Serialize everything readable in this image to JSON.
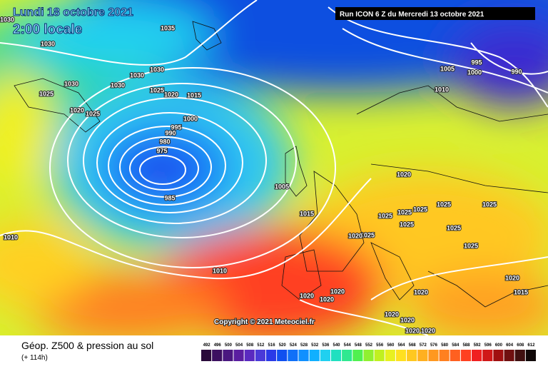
{
  "header": {
    "date": "Lundi 18 octobre 2021",
    "time": "2:00 locale",
    "run": "Run ICON 6 Z du Mercredi 13 octobre 2021"
  },
  "copyright": "Copyright © 2021 Meteociel.fr",
  "footer": {
    "title": "Géop. Z500 & pression au sol",
    "lead": "(+ 114h)"
  },
  "isobar_labels": [
    1030,
    1035,
    1030,
    1030,
    1030,
    1030,
    1030,
    1025,
    1020,
    1015,
    1025,
    1020,
    1025,
    1000,
    995,
    990,
    980,
    975,
    985,
    1005,
    1015,
    1010,
    1010,
    1020,
    1025,
    1025,
    1025,
    1025,
    1025,
    1025,
    1025,
    1025,
    1025,
    1020,
    1020,
    1020,
    1020,
    1020,
    1020,
    1020,
    1020,
    1020,
    1020,
    1015,
    1005,
    995,
    1000,
    990,
    1010
  ],
  "scale": {
    "labels": [
      492,
      496,
      500,
      504,
      508,
      512,
      516,
      520,
      524,
      528,
      532,
      536,
      540,
      544,
      548,
      552,
      556,
      560,
      564,
      568,
      572,
      576,
      580,
      584,
      588,
      592,
      596,
      600,
      604,
      608,
      612
    ],
    "colors": [
      "#2a0a3a",
      "#3c1060",
      "#4a1880",
      "#5a1ea0",
      "#5a2ac0",
      "#4a3ad8",
      "#2a3ae8",
      "#1050f0",
      "#1070f8",
      "#1090ff",
      "#10b0ff",
      "#20d0f0",
      "#20e0c0",
      "#30e890",
      "#50f050",
      "#90f030",
      "#c0f020",
      "#e8f020",
      "#ffe020",
      "#ffc820",
      "#ffb020",
      "#ff9820",
      "#ff8020",
      "#ff6020",
      "#ff4020",
      "#f02020",
      "#d01818",
      "#a01010",
      "#701010",
      "#401010",
      "#100808"
    ]
  }
}
